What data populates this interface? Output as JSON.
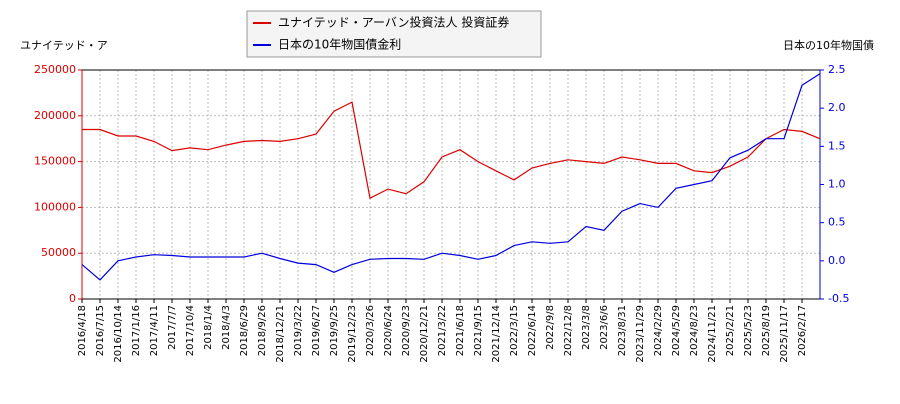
{
  "chart_data": {
    "type": "line",
    "y_label": "ユナイテッド・ア",
    "y2_label": "日本の10年物国債",
    "x": [
      "2016/4/18",
      "2016/7/15",
      "2016/10/14",
      "2017/1/16",
      "2017/4/11",
      "2017/7/7",
      "2017/10/4",
      "2018/1/4",
      "2018/4/3",
      "2018/6/29",
      "2018/9/26",
      "2018/12/21",
      "2019/3/22",
      "2019/6/27",
      "2019/9/25",
      "2019/12/23",
      "2020/3/26",
      "2020/6/24",
      "2020/9/23",
      "2020/12/21",
      "2021/3/22",
      "2021/6/18",
      "2021/9/15",
      "2021/12/14",
      "2022/3/15",
      "2022/6/14",
      "2022/9/8",
      "2022/12/8",
      "2023/3/8",
      "2023/6/6",
      "2023/8/31",
      "2023/11/29",
      "2024/2/29",
      "2024/5/29",
      "2024/8/23",
      "2024/11/21",
      "2025/2/21",
      "2025/5/23",
      "2025/8/19",
      "2025/11/17",
      "2026/2/17",
      null
    ],
    "series": [
      {
        "name": "ユナイテッド・アーバン投資法人 投資証券",
        "color": "#dd0000",
        "axis": "y",
        "values": [
          185000,
          185000,
          178000,
          178000,
          172000,
          162000,
          165000,
          163000,
          168000,
          172000,
          173000,
          172000,
          175000,
          180000,
          205000,
          215000,
          110000,
          120000,
          115000,
          128000,
          155000,
          163000,
          150000,
          140000,
          130000,
          143000,
          148000,
          152000,
          150000,
          148000,
          155000,
          152000,
          148000,
          148000,
          140000,
          138000,
          145000,
          155000,
          175000,
          185000,
          183000,
          175000
        ]
      },
      {
        "name": "日本の10年物国債金利",
        "color": "#0000dd",
        "axis": "y2",
        "values": [
          -0.05,
          -0.25,
          0.0,
          0.05,
          0.08,
          0.07,
          0.05,
          0.05,
          0.05,
          0.05,
          0.1,
          0.03,
          -0.03,
          -0.05,
          -0.15,
          -0.05,
          0.02,
          0.03,
          0.03,
          0.02,
          0.1,
          0.07,
          0.02,
          0.07,
          0.2,
          0.25,
          0.23,
          0.25,
          0.45,
          0.4,
          0.65,
          0.75,
          0.7,
          0.95,
          1.0,
          1.05,
          1.35,
          1.45,
          1.6,
          1.6,
          2.3,
          2.45
        ]
      }
    ],
    "ylim": [
      0,
      250000
    ],
    "yticks": [
      0,
      50000,
      100000,
      150000,
      200000,
      250000
    ],
    "y2lim": [
      -0.5,
      2.5
    ],
    "y2ticks": [
      -0.5,
      {
        "value": 0,
        "label": "0.0"
      },
      0.5,
      {
        "value": 1,
        "label": "1.0"
      },
      1.5,
      {
        "value": 2,
        "label": "2.0"
      },
      2.5
    ],
    "grid": true
  }
}
